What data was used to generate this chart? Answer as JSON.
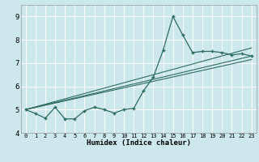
{
  "title": "",
  "xlabel": "Humidex (Indice chaleur)",
  "bg_color": "#cce8ec",
  "grid_color": "#ffffff",
  "line_color": "#2e6b5e",
  "xlim": [
    -0.5,
    23.5
  ],
  "ylim": [
    4.0,
    9.5
  ],
  "yticks": [
    4,
    5,
    6,
    7,
    8,
    9
  ],
  "xticks": [
    0,
    1,
    2,
    3,
    4,
    5,
    6,
    7,
    8,
    9,
    10,
    11,
    12,
    13,
    14,
    15,
    16,
    17,
    18,
    19,
    20,
    21,
    22,
    23
  ],
  "curve1_x": [
    0,
    1,
    2,
    3,
    4,
    5,
    6,
    7,
    8,
    9,
    10,
    11,
    12,
    13,
    14,
    15,
    16,
    17,
    18,
    19,
    20,
    21,
    22,
    23
  ],
  "curve1_y": [
    5.0,
    4.83,
    4.63,
    5.1,
    4.6,
    4.6,
    4.95,
    5.1,
    5.0,
    4.85,
    5.0,
    5.05,
    5.8,
    6.4,
    7.55,
    9.0,
    8.2,
    7.45,
    7.5,
    7.5,
    7.45,
    7.35,
    7.4,
    7.3
  ],
  "line1_x": [
    0,
    23
  ],
  "line1_y": [
    5.0,
    7.3
  ],
  "line2_x": [
    0,
    23
  ],
  "line2_y": [
    5.0,
    7.65
  ],
  "line3_x": [
    0,
    23
  ],
  "line3_y": [
    5.0,
    7.15
  ]
}
